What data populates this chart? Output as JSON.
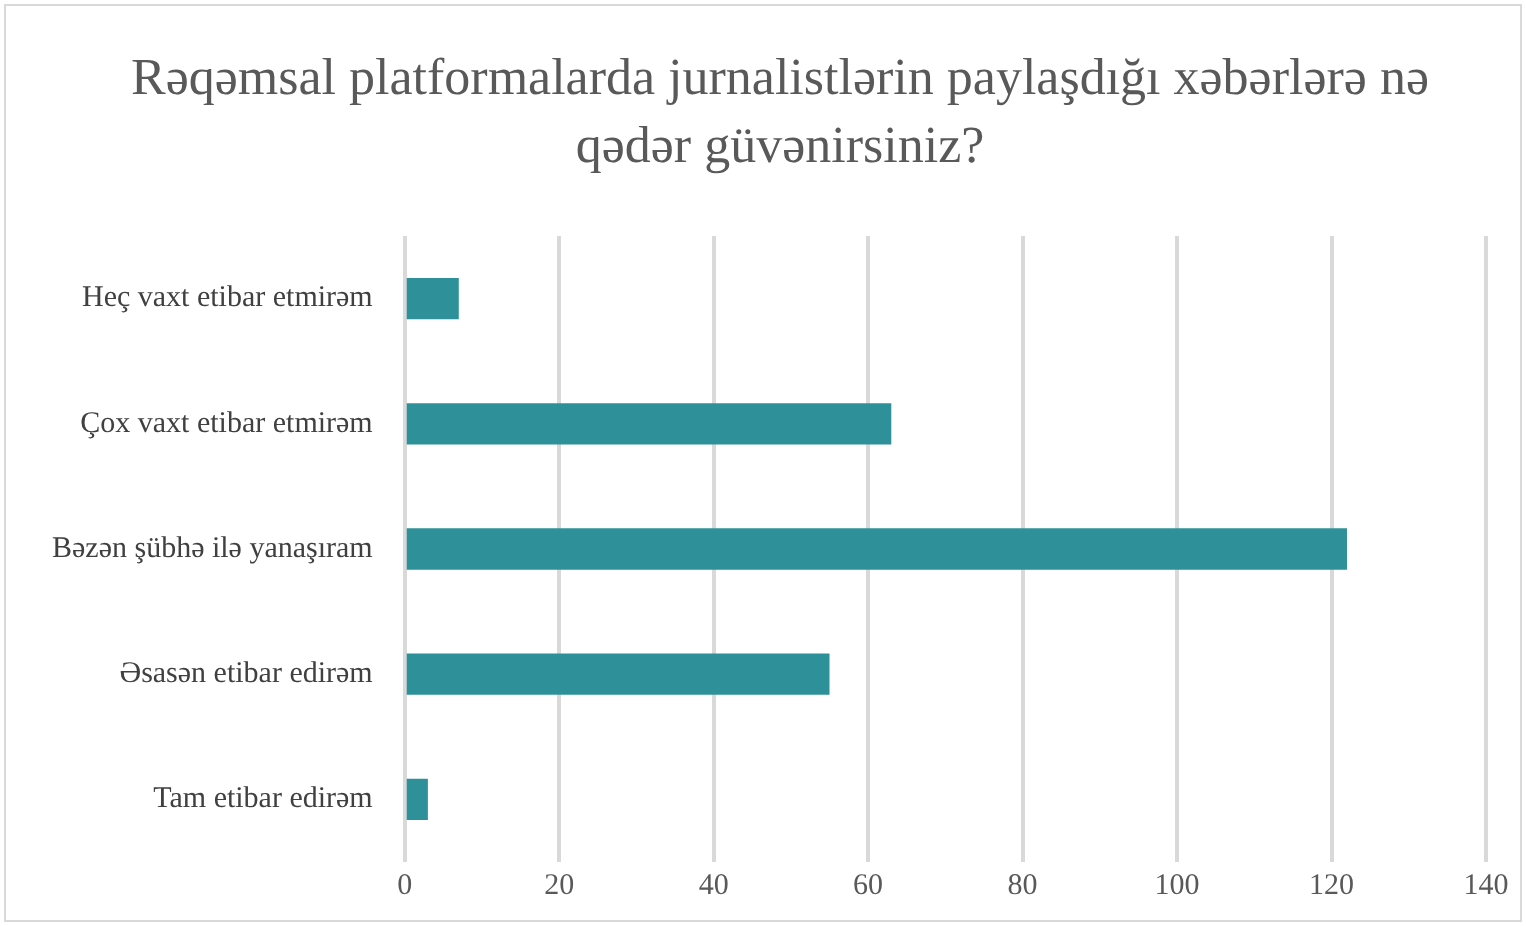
{
  "chart_data": {
    "type": "bar",
    "orientation": "horizontal",
    "title": "Rəqəmsal platformalarda jurnalistlərin paylaşdığı xəbərlərə nə qədər güvənirsiniz?",
    "categories": [
      "Heç vaxt etibar etmirəm",
      "Çox vaxt etibar etmirəm",
      "Bəzən şübhə ilə yanaşıram",
      "Əsasən etibar edirəm",
      "Tam etibar edirəm"
    ],
    "values": [
      7,
      63,
      122,
      55,
      3
    ],
    "color": "#2e9099",
    "xlim": [
      0,
      140
    ],
    "xticks": [
      0,
      20,
      40,
      60,
      80,
      100,
      120,
      140
    ],
    "grid": "x",
    "legend": false
  }
}
